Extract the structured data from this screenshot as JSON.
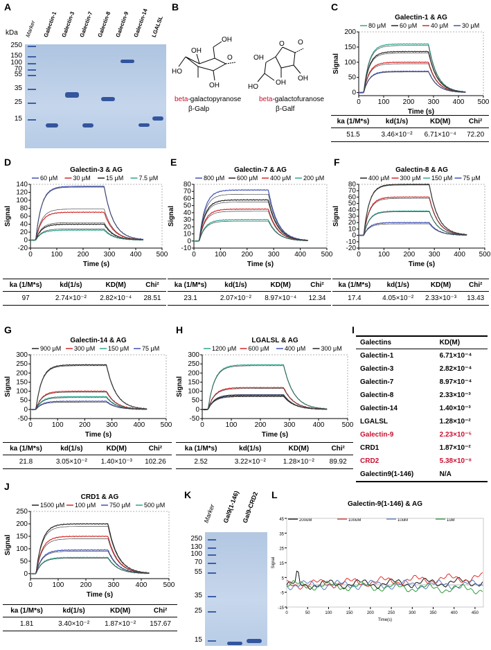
{
  "panels": {
    "A": "A",
    "B": "B",
    "C": "C",
    "D": "D",
    "E": "E",
    "F": "F",
    "G": "G",
    "H": "H",
    "I": "I",
    "J": "J",
    "K": "K",
    "L": "L"
  },
  "gelA": {
    "kda_label": "kDa",
    "markers": [
      "250",
      "150",
      "100",
      "70",
      "55",
      "35",
      "25",
      "15"
    ],
    "lanes": [
      "Marker",
      "Galectin-1",
      "Galectin-3",
      "Galectin-7",
      "Galectin-8",
      "Galectin-9",
      "Galectin-14",
      "LGALSL"
    ]
  },
  "structB": {
    "pyranose_name_red": "beta",
    "pyranose_name_rest": "-galactopyranose",
    "pyranose_abbr": "β-Galp",
    "furanose_name_red": "beta",
    "furanose_name_rest": "-galactofuranose",
    "furanose_abbr": "β-Galf",
    "oh": "OH",
    "ho": "HO",
    "o": "O"
  },
  "gelK": {
    "markers": [
      "250",
      "130",
      "100",
      "70",
      "55",
      "35",
      "25",
      "15"
    ],
    "lanes": [
      "Marker",
      "Gal9(1-146)",
      "Gal9-CRD2"
    ]
  },
  "kd_table": {
    "headers": [
      "Galectins",
      "KD(M)"
    ],
    "rows": [
      {
        "name": "Galectin-1",
        "kd": "6.71×10⁻⁴",
        "red": false
      },
      {
        "name": "Galectin-3",
        "kd": "2.82×10⁻⁴",
        "red": false
      },
      {
        "name": "Galectin-7",
        "kd": "8.97×10⁻⁴",
        "red": false
      },
      {
        "name": "Galectin-8",
        "kd": "2.33×10⁻³",
        "red": false
      },
      {
        "name": "Galectin-14",
        "kd": "1.40×10⁻³",
        "red": false
      },
      {
        "name": "LGALSL",
        "kd": "1.28×10⁻²",
        "red": false
      },
      {
        "name": "Galectin-9",
        "kd": "2.23×10⁻⁵",
        "red": true
      },
      {
        "name": "CRD1",
        "kd": "1.87×10⁻²",
        "red": false
      },
      {
        "name": "CRD2",
        "kd": "5.38×10⁻⁸",
        "red": true
      },
      {
        "name": "Galectin9(1-146)",
        "kd": "N/A",
        "red": false
      }
    ]
  },
  "table_headers": [
    "ka (1/M*s)",
    "kd(1/s)",
    "KD(M)",
    "Chi²"
  ],
  "chart_data": [
    {
      "id": "C",
      "type": "line",
      "title": "Galectin-1 & AG",
      "xlabel": "Time (s)",
      "ylabel": "Signal",
      "xlim": [
        0,
        500
      ],
      "ylim": [
        -10,
        200
      ],
      "xticks": [
        0,
        100,
        200,
        300,
        400,
        500
      ],
      "yticks": [
        -10,
        0,
        10,
        20,
        30,
        40,
        50,
        60,
        70,
        80,
        90,
        100,
        110,
        120,
        130,
        140,
        150,
        160,
        170,
        180,
        190,
        200
      ],
      "ytick_labels": [
        "0",
        "50",
        "100",
        "150",
        "200"
      ],
      "ytick_vals": [
        0,
        50,
        100,
        150,
        200
      ],
      "yminor": [
        -10
      ],
      "series": [
        {
          "name": "80 μM",
          "color": "#2ca58d",
          "plateau": 160
        },
        {
          "name": "60 μM",
          "color": "#222222",
          "plateau": 135
        },
        {
          "name": "40 μM",
          "color": "#d62728",
          "plateau": 100
        },
        {
          "name": "30 μM",
          "color": "#3f51b5",
          "plateau": 70
        }
      ],
      "fits": [
        155,
        130,
        95,
        68
      ],
      "table": [
        "51.5",
        "3.46×10⁻²",
        "6.71×10⁻⁴",
        "72.20"
      ]
    },
    {
      "id": "D",
      "type": "line",
      "title": "Galectin-3 & AG",
      "xlabel": "Time (s)",
      "ylabel": "Signal",
      "xlim": [
        0,
        500
      ],
      "ylim": [
        -20,
        140
      ],
      "xticks": [
        0,
        100,
        200,
        300,
        400,
        500
      ],
      "ytick_vals": [
        -20,
        0,
        20,
        40,
        60,
        80,
        100,
        120,
        140
      ],
      "series": [
        {
          "name": "60 μM",
          "color": "#3f51b5",
          "plateau": 135
        },
        {
          "name": "30 μM",
          "color": "#d62728",
          "plateau": 70
        },
        {
          "name": "15 μM",
          "color": "#222222",
          "plateau": 40
        },
        {
          "name": "7.5 μM",
          "color": "#2ca58d",
          "plateau": 25
        }
      ],
      "fits": [
        133,
        78,
        44,
        28
      ],
      "table": [
        "97",
        "2.74×10⁻²",
        "2.82×10⁻⁴",
        "28.51"
      ]
    },
    {
      "id": "E",
      "type": "line",
      "title": "Galectin-7 & AG",
      "xlabel": "Time (s)",
      "ylabel": "Signal",
      "xlim": [
        0,
        500
      ],
      "ylim": [
        -10,
        80
      ],
      "xticks": [
        0,
        100,
        200,
        300,
        400,
        500
      ],
      "ytick_vals": [
        -10,
        0,
        10,
        20,
        30,
        40,
        50,
        60,
        70,
        80
      ],
      "series": [
        {
          "name": "800 μM",
          "color": "#3f51b5",
          "plateau": 72
        },
        {
          "name": "600 μM",
          "color": "#222222",
          "plateau": 58
        },
        {
          "name": "400 μM",
          "color": "#d62728",
          "plateau": 45
        },
        {
          "name": "200 μM",
          "color": "#2ca58d",
          "plateau": 30
        }
      ],
      "fits": [
        66,
        55,
        42,
        28
      ],
      "table": [
        "23.1",
        "2.07×10⁻²",
        "8.97×10⁻⁴",
        "12.34"
      ]
    },
    {
      "id": "F",
      "type": "line",
      "title": "Galectin-8 & AG",
      "xlabel": "Time (s)",
      "ylabel": "Signal",
      "xlim": [
        0,
        500
      ],
      "ylim": [
        -20,
        80
      ],
      "xticks": [
        0,
        100,
        200,
        300,
        400,
        500
      ],
      "ytick_vals": [
        -20,
        -10,
        0,
        10,
        20,
        30,
        40,
        50,
        60,
        70,
        80
      ],
      "series": [
        {
          "name": "400 μM",
          "color": "#222222",
          "plateau": 80
        },
        {
          "name": "300 μM",
          "color": "#d62728",
          "plateau": 60
        },
        {
          "name": "150 μM",
          "color": "#2ca58d",
          "plateau": 38
        },
        {
          "name": "75 μM",
          "color": "#3f51b5",
          "plateau": 20
        }
      ],
      "fits": [
        79,
        58,
        37,
        18
      ],
      "table": [
        "17.4",
        "4.05×10⁻²",
        "2.33×10⁻³",
        "13.43"
      ]
    },
    {
      "id": "G",
      "type": "line",
      "title": "Galectin-14 & AG",
      "xlabel": "Time (s)",
      "ylabel": "Signal",
      "xlim": [
        0,
        500
      ],
      "ylim": [
        -50,
        300
      ],
      "xticks": [
        0,
        100,
        200,
        300,
        400,
        500
      ],
      "ytick_vals": [
        -50,
        0,
        50,
        100,
        150,
        200,
        250,
        300
      ],
      "series": [
        {
          "name": "900 μM",
          "color": "#222222",
          "plateau": 245
        },
        {
          "name": "300 μM",
          "color": "#d62728",
          "plateau": 100
        },
        {
          "name": "150 μM",
          "color": "#2ca58d",
          "plateau": 70
        },
        {
          "name": "75 μM",
          "color": "#3f51b5",
          "plateau": 45
        }
      ],
      "fits": [
        240,
        95,
        65,
        40
      ],
      "table": [
        "21.8",
        "3.05×10⁻²",
        "1.40×10⁻³",
        "102.26"
      ]
    },
    {
      "id": "H",
      "type": "line",
      "title": "LGALSL & AG",
      "xlabel": "Time (s)",
      "ylabel": "Signal",
      "xlim": [
        0,
        500
      ],
      "ylim": [
        -50,
        300
      ],
      "xticks": [
        0,
        100,
        200,
        300,
        400,
        500
      ],
      "ytick_vals": [
        -50,
        0,
        50,
        100,
        150,
        200,
        250,
        300
      ],
      "series": [
        {
          "name": "1200 μM",
          "color": "#2ca58d",
          "plateau": 245
        },
        {
          "name": "600 μM",
          "color": "#d62728",
          "plateau": 120
        },
        {
          "name": "400 μM",
          "color": "#3f51b5",
          "plateau": 80
        },
        {
          "name": "300 μM",
          "color": "#222222",
          "plateau": 75
        }
      ],
      "fits": [
        240,
        115,
        82,
        70
      ],
      "table": [
        "2.52",
        "3.22×10⁻²",
        "1.28×10⁻²",
        "89.92"
      ]
    },
    {
      "id": "J",
      "type": "line",
      "title": "CRD1 & AG",
      "xlabel": "Time (s)",
      "ylabel": "Signal",
      "xlim": [
        0,
        500
      ],
      "ylim": [
        -20,
        250
      ],
      "xticks": [
        0,
        100,
        200,
        300,
        400,
        500
      ],
      "ytick_vals": [
        0,
        50,
        100,
        150,
        200,
        250
      ],
      "series": [
        {
          "name": "1500 μM",
          "color": "#222222",
          "plateau": 200
        },
        {
          "name": "100 μM",
          "color": "#d62728",
          "plateau": 150
        },
        {
          "name": "750 μM",
          "color": "#3f51b5",
          "plateau": 95
        },
        {
          "name": "500 μM",
          "color": "#2ca58d",
          "plateau": 65
        }
      ],
      "fits": [
        190,
        140,
        90,
        62
      ],
      "table": [
        "1.81",
        "3.40×10⁻²",
        "1.87×10⁻²",
        "157.67"
      ]
    },
    {
      "id": "L",
      "type": "line",
      "title": "Galectin-9(1-146) & AG",
      "xlabel": "Time(s)",
      "ylabel": "Signal",
      "xlim": [
        0,
        470
      ],
      "ylim": [
        -15,
        45
      ],
      "xticks": [
        0,
        50,
        100,
        150,
        200,
        250,
        300,
        350,
        400,
        450
      ],
      "ytick_vals": [
        -15,
        -5,
        5,
        15,
        25,
        35,
        45
      ],
      "series": [
        {
          "name": "200uM",
          "color": "#111111"
        },
        {
          "name": "100uM",
          "color": "#e03030"
        },
        {
          "name": "10uM",
          "color": "#5a7fc0"
        },
        {
          "name": "1uM",
          "color": "#2e9a3a"
        }
      ],
      "flat": true
    }
  ]
}
